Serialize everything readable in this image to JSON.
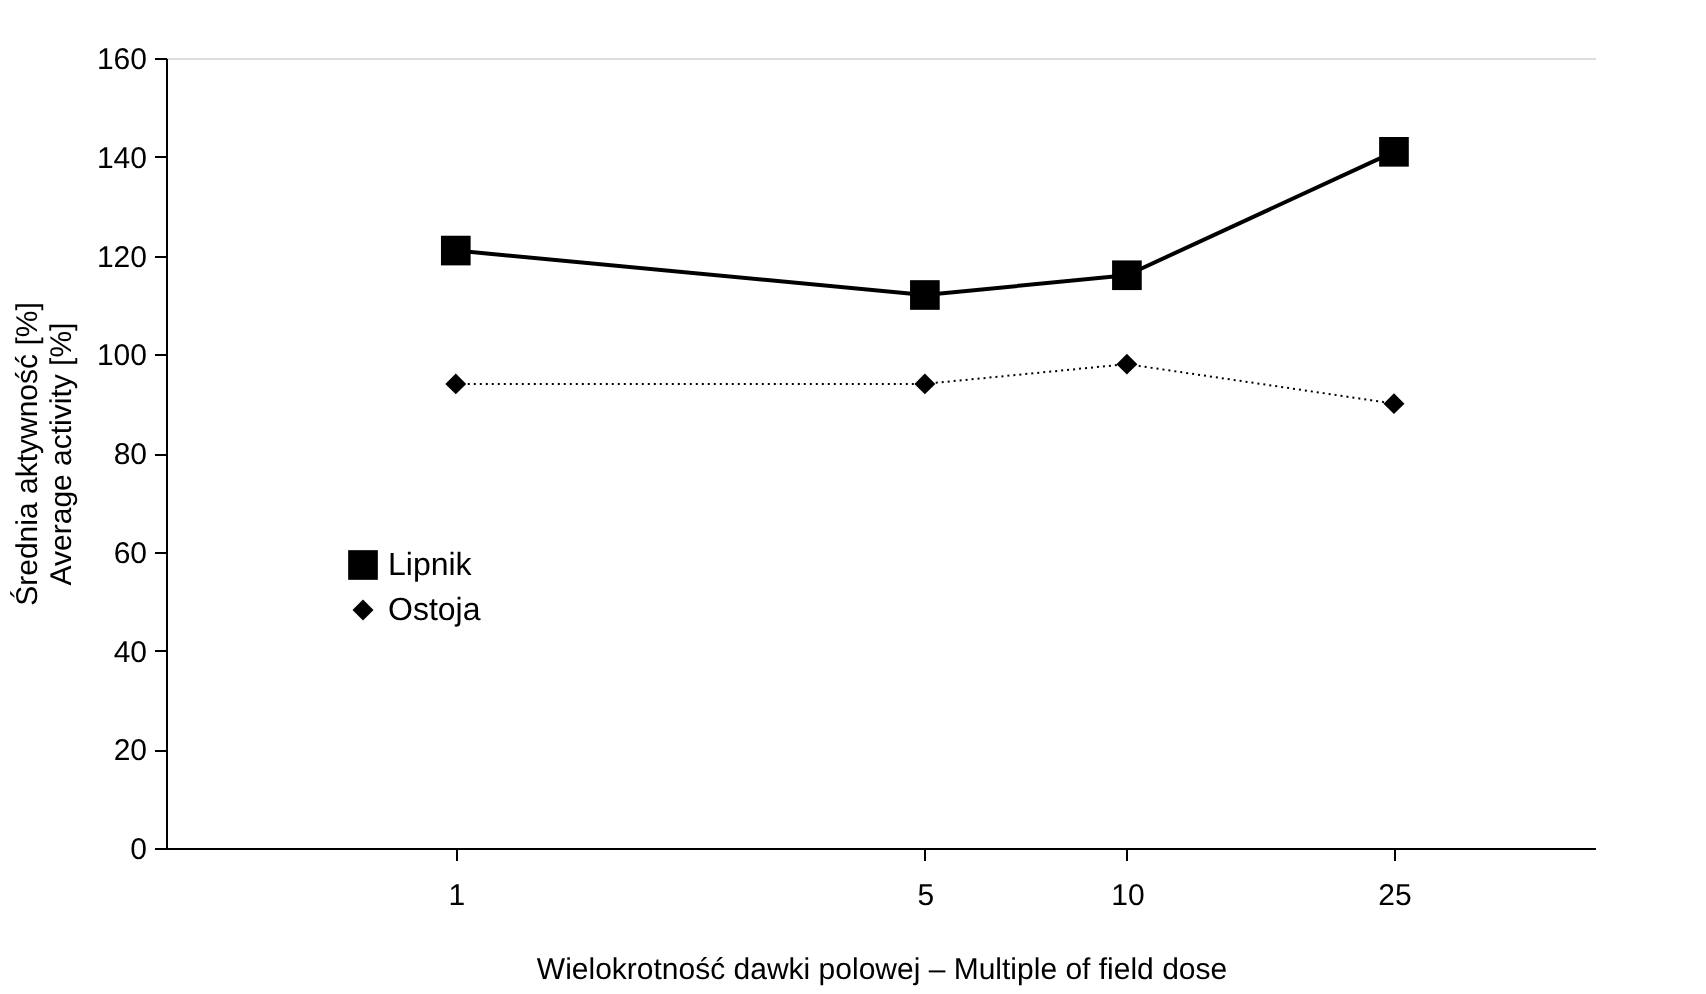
{
  "chart_data": {
    "type": "line",
    "xlabel": "Wielokrotność dawki polowej – Multiple of field dose",
    "ylabel": [
      "Średnia aktywność [%]",
      "Average activity [%]"
    ],
    "x": [
      1,
      5,
      10,
      25
    ],
    "series": [
      {
        "name": "Lipnik",
        "color": "#000000",
        "values": [
          121,
          112,
          116,
          141
        ],
        "marker": "square",
        "line_style": "solid"
      },
      {
        "name": "Ostoja",
        "color": "#000000",
        "values": [
          94,
          94,
          98,
          90
        ],
        "marker": "diamond",
        "line_style": "dotted"
      }
    ],
    "log": "x",
    "xlim": [
      0.37,
      50
    ],
    "xticks": [
      1,
      5,
      10,
      25
    ],
    "ylim": [
      0,
      160
    ],
    "yticks": [
      0,
      20,
      40,
      60,
      80,
      100,
      120,
      140,
      160
    ],
    "grid": false,
    "legend": "bottom left"
  }
}
